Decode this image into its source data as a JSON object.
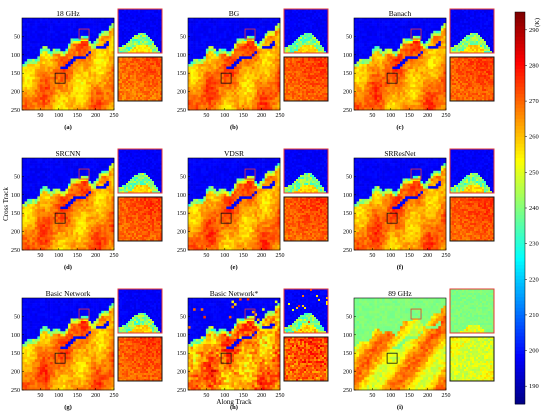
{
  "chart_data": {
    "type": "heatmap",
    "colorbar": {
      "unit": "(K)",
      "range": [
        185,
        295
      ],
      "ticks": [
        190,
        200,
        210,
        220,
        230,
        240,
        250,
        260,
        270,
        280,
        290
      ],
      "colormap": "jet"
    },
    "x_ticks": [
      50,
      100,
      150,
      200,
      250
    ],
    "y_ticks": [
      50,
      100,
      150,
      200,
      250
    ],
    "xlabel": "Along Track",
    "ylabel": "Cross Track",
    "panels": [
      {
        "title": "18 GHz",
        "caption": "(a)",
        "variant": "low"
      },
      {
        "title": "BG",
        "caption": "(b)",
        "variant": "sr"
      },
      {
        "title": "Banach",
        "caption": "(c)",
        "variant": "sr"
      },
      {
        "title": "SRCNN",
        "caption": "(d)",
        "variant": "sr"
      },
      {
        "title": "VDSR",
        "caption": "(e)",
        "variant": "sr"
      },
      {
        "title": "SRResNet",
        "caption": "(f)",
        "variant": "sr"
      },
      {
        "title": "Basic Network",
        "caption": "(g)",
        "variant": "sr"
      },
      {
        "title": "Basic Network*",
        "caption": "(h)",
        "variant": "noisy"
      },
      {
        "title": "89 GHz",
        "caption": "(i)",
        "variant": "high"
      }
    ]
  }
}
